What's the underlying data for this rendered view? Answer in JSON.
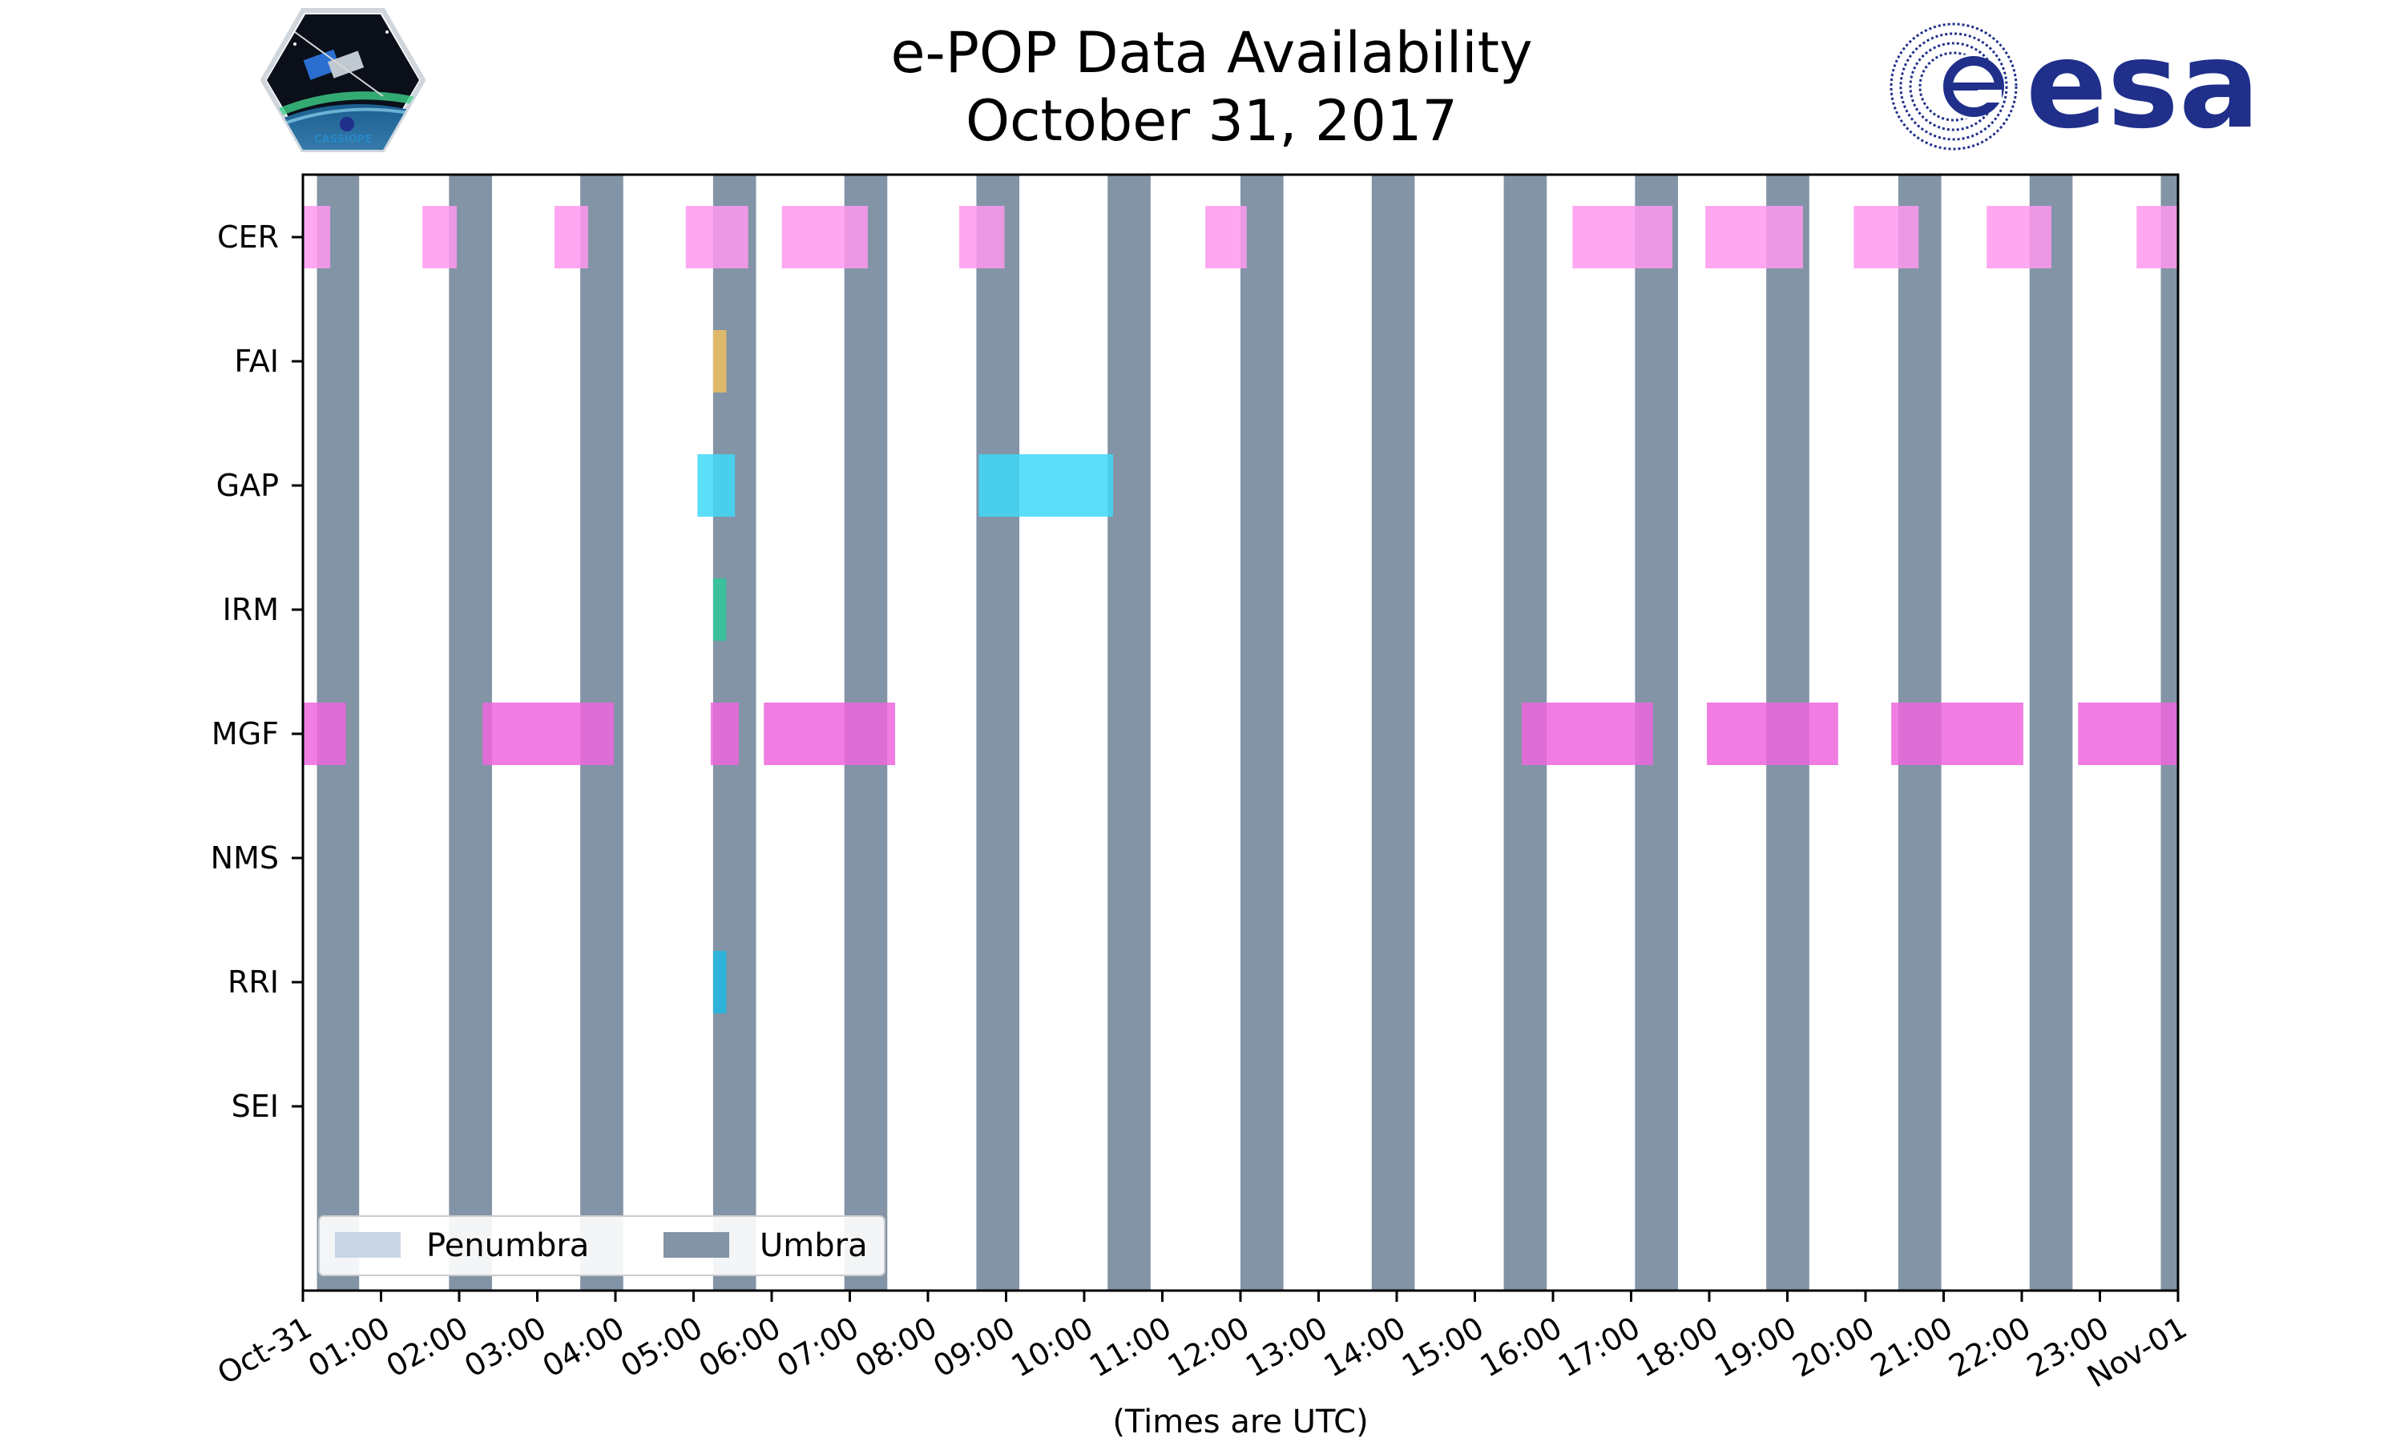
{
  "chart_data": {
    "type": "timeline",
    "title": [
      "e-POP Data Availability",
      "October 31, 2017"
    ],
    "xlabel": "(Times are UTC)",
    "x_unit": "hours UTC",
    "xlim": [
      0,
      24
    ],
    "x_tick_labels": [
      "Oct-31",
      "01:00",
      "02:00",
      "03:00",
      "04:00",
      "05:00",
      "06:00",
      "07:00",
      "08:00",
      "09:00",
      "10:00",
      "11:00",
      "12:00",
      "13:00",
      "14:00",
      "15:00",
      "16:00",
      "17:00",
      "18:00",
      "19:00",
      "20:00",
      "21:00",
      "22:00",
      "23:00",
      "Nov-01"
    ],
    "instruments": [
      "CER",
      "FAI",
      "GAP",
      "IRM",
      "MGF",
      "NMS",
      "RRI",
      "SEI"
    ],
    "legend": {
      "placement": "lower-left",
      "entries": [
        {
          "name": "Penumbra",
          "color": "#c8d6e6"
        },
        {
          "name": "Umbra",
          "color": "#8294a6"
        }
      ]
    },
    "umbra_intervals": [
      [
        0.18,
        0.72
      ],
      [
        1.87,
        2.42
      ],
      [
        3.55,
        4.1
      ],
      [
        5.25,
        5.8
      ],
      [
        6.93,
        7.48
      ],
      [
        8.62,
        9.17
      ],
      [
        10.3,
        10.85
      ],
      [
        12.0,
        12.55
      ],
      [
        13.68,
        14.23
      ],
      [
        15.37,
        15.92
      ],
      [
        17.05,
        17.6
      ],
      [
        18.73,
        19.28
      ],
      [
        20.42,
        20.97
      ],
      [
        22.1,
        22.65
      ],
      [
        23.78,
        24.0
      ]
    ],
    "series": [
      {
        "name": "CER",
        "color": "#ff99ee",
        "intervals": [
          [
            0.0,
            0.35
          ],
          [
            1.53,
            1.97
          ],
          [
            3.22,
            3.65
          ],
          [
            4.9,
            5.7
          ],
          [
            6.13,
            7.23
          ],
          [
            8.4,
            8.98
          ],
          [
            11.55,
            12.08
          ],
          [
            16.25,
            17.53
          ],
          [
            17.95,
            19.2
          ],
          [
            19.85,
            20.68
          ],
          [
            21.55,
            22.38
          ],
          [
            23.47,
            24.0
          ]
        ]
      },
      {
        "name": "FAI",
        "color": "#f0c060",
        "intervals": [
          [
            5.25,
            5.42
          ]
        ]
      },
      {
        "name": "GAP",
        "color": "#40d8f8",
        "intervals": [
          [
            5.05,
            5.53
          ],
          [
            8.65,
            10.37
          ]
        ]
      },
      {
        "name": "IRM",
        "color": "#30c89a",
        "intervals": [
          [
            5.25,
            5.42
          ]
        ]
      },
      {
        "name": "MGF",
        "color": "#ee66dd",
        "intervals": [
          [
            0.0,
            0.55
          ],
          [
            2.3,
            3.98
          ],
          [
            5.22,
            5.58
          ],
          [
            5.9,
            7.58
          ],
          [
            15.6,
            17.28
          ],
          [
            17.97,
            19.65
          ],
          [
            20.33,
            22.02
          ],
          [
            22.72,
            24.0
          ]
        ]
      },
      {
        "name": "NMS",
        "color": "#ee66dd",
        "intervals": []
      },
      {
        "name": "RRI",
        "color": "#20b8e0",
        "intervals": [
          [
            5.25,
            5.42
          ]
        ]
      },
      {
        "name": "SEI",
        "color": "#ee66dd",
        "intervals": []
      }
    ]
  },
  "logos": {
    "left": {
      "name": "cassiope-logo-icon",
      "text": "CASSIOPE"
    },
    "right": {
      "name": "esa-logo-icon",
      "text": "esa",
      "color": "#1f2f8a"
    }
  }
}
